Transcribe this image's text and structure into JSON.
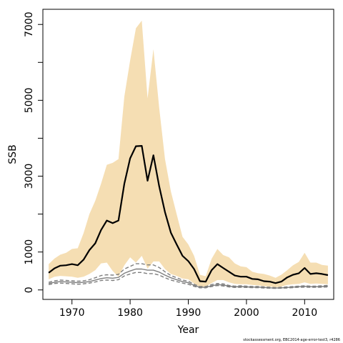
{
  "chart_data": {
    "type": "line",
    "xlabel": "Year",
    "ylabel": "SSB",
    "xlim": [
      1965,
      2015
    ],
    "ylim": [
      -250,
      7400
    ],
    "x_ticks": [
      1970,
      1980,
      1990,
      2000,
      2010
    ],
    "y_ticks_labeled": [
      0,
      1000,
      3000,
      5000,
      7000
    ],
    "y_ticks_all": [
      0,
      1000,
      2000,
      3000,
      4000,
      5000,
      6000,
      7000
    ],
    "grid": false,
    "credit": "stockassessment.org, EBC2014-age-error-test3, r4286",
    "colors": {
      "band": "#f5deb3",
      "ssb": "#000000",
      "secondary": "#7f7f7f"
    },
    "series": [
      {
        "role": "ssb-estimate",
        "x": [
          1966,
          1967,
          1968,
          1969,
          1970,
          1971,
          1972,
          1973,
          1974,
          1975,
          1976,
          1977,
          1978,
          1979,
          1980,
          1981,
          1982,
          1983,
          1984,
          1985,
          1986,
          1987,
          1988,
          1989,
          1990,
          1991,
          1992,
          1993,
          1994,
          1995,
          1996,
          1997,
          1998,
          1999,
          2000,
          2001,
          2002,
          2003,
          2004,
          2005,
          2006,
          2007,
          2008,
          2009,
          2010,
          2011,
          2012,
          2013,
          2014
        ],
        "values": [
          450,
          570,
          640,
          650,
          680,
          650,
          800,
          1050,
          1230,
          1580,
          1830,
          1760,
          1830,
          2800,
          3470,
          3790,
          3800,
          2880,
          3550,
          2730,
          2050,
          1510,
          1200,
          900,
          760,
          550,
          230,
          220,
          520,
          680,
          580,
          480,
          380,
          350,
          350,
          290,
          280,
          230,
          220,
          180,
          220,
          330,
          400,
          440,
          580,
          420,
          440,
          420,
          390
        ],
        "color": "#000000",
        "width": 2.2,
        "dash": null
      },
      {
        "role": "ci-upper-secondary",
        "x": [
          1966,
          1967,
          1968,
          1969,
          1970,
          1971,
          1972,
          1973,
          1974,
          1975,
          1976,
          1977,
          1978,
          1979,
          1980,
          1981,
          1982,
          1983,
          1984,
          1985,
          1986,
          1987,
          1988,
          1989,
          1990,
          1991,
          1992,
          1993,
          1994,
          1995,
          1996,
          1997,
          1998,
          1999,
          2000,
          2001,
          2002,
          2003,
          2004,
          2005,
          2006,
          2007,
          2008,
          2009,
          2010,
          2011,
          2012,
          2013,
          2014
        ],
        "values": [
          200,
          240,
          260,
          250,
          240,
          230,
          240,
          270,
          320,
          380,
          400,
          390,
          410,
          550,
          620,
          690,
          690,
          660,
          660,
          590,
          480,
          380,
          320,
          260,
          230,
          150,
          90,
          90,
          140,
          170,
          160,
          120,
          100,
          110,
          100,
          90,
          90,
          80,
          70,
          60,
          70,
          80,
          90,
          100,
          110,
          100,
          100,
          110,
          120
        ],
        "color": "#7f7f7f",
        "width": 1.4,
        "dash": "5,3"
      },
      {
        "role": "secondary-estimate",
        "x": [
          1966,
          1967,
          1968,
          1969,
          1970,
          1971,
          1972,
          1973,
          1974,
          1975,
          1976,
          1977,
          1978,
          1979,
          1980,
          1981,
          1982,
          1983,
          1984,
          1985,
          1986,
          1987,
          1988,
          1989,
          1990,
          1991,
          1992,
          1993,
          1994,
          1995,
          1996,
          1997,
          1998,
          1999,
          2000,
          2001,
          2002,
          2003,
          2004,
          2005,
          2006,
          2007,
          2008,
          2009,
          2010,
          2011,
          2012,
          2013,
          2014
        ],
        "values": [
          170,
          200,
          220,
          210,
          200,
          190,
          200,
          220,
          260,
          300,
          320,
          310,
          330,
          440,
          500,
          550,
          550,
          520,
          520,
          470,
          390,
          320,
          270,
          220,
          190,
          120,
          70,
          70,
          110,
          140,
          130,
          100,
          80,
          90,
          80,
          75,
          75,
          65,
          55,
          50,
          55,
          65,
          75,
          85,
          95,
          85,
          85,
          90,
          100
        ],
        "color": "#7f7f7f",
        "width": 1.4,
        "dash": null
      },
      {
        "role": "ci-lower-secondary",
        "x": [
          1966,
          1967,
          1968,
          1969,
          1970,
          1971,
          1972,
          1973,
          1974,
          1975,
          1976,
          1977,
          1978,
          1979,
          1980,
          1981,
          1982,
          1983,
          1984,
          1985,
          1986,
          1987,
          1988,
          1989,
          1990,
          1991,
          1992,
          1993,
          1994,
          1995,
          1996,
          1997,
          1998,
          1999,
          2000,
          2001,
          2002,
          2003,
          2004,
          2005,
          2006,
          2007,
          2008,
          2009,
          2010,
          2011,
          2012,
          2013,
          2014
        ],
        "values": [
          140,
          170,
          180,
          170,
          160,
          150,
          160,
          180,
          210,
          250,
          260,
          250,
          270,
          370,
          420,
          460,
          460,
          430,
          430,
          390,
          320,
          260,
          220,
          180,
          150,
          95,
          55,
          55,
          90,
          115,
          105,
          80,
          65,
          70,
          65,
          60,
          60,
          52,
          45,
          40,
          45,
          52,
          60,
          68,
          75,
          68,
          68,
          72,
          80
        ],
        "color": "#7f7f7f",
        "width": 1.4,
        "dash": "5,3"
      }
    ],
    "band": {
      "role": "ssb-confidence-band",
      "x": [
        1966,
        1967,
        1968,
        1969,
        1970,
        1971,
        1972,
        1973,
        1974,
        1975,
        1976,
        1977,
        1978,
        1979,
        1980,
        1981,
        1982,
        1983,
        1984,
        1985,
        1986,
        1987,
        1988,
        1989,
        1990,
        1991,
        1992,
        1993,
        1994,
        1995,
        1996,
        1997,
        1998,
        1999,
        2000,
        2001,
        2002,
        2003,
        2004,
        2005,
        2006,
        2007,
        2008,
        2009,
        2010,
        2011,
        2012,
        2013,
        2014
      ],
      "upper": [
        680,
        830,
        930,
        980,
        1080,
        1100,
        1500,
        2000,
        2350,
        2800,
        3300,
        3350,
        3450,
        5100,
        6050,
        6900,
        7100,
        5050,
        6350,
        4800,
        3450,
        2600,
        2000,
        1400,
        1200,
        900,
        400,
        360,
        820,
        1080,
        920,
        860,
        700,
        620,
        600,
        480,
        440,
        420,
        380,
        320,
        400,
        520,
        650,
        740,
        980,
        720,
        720,
        660,
        640
      ],
      "lower": [
        280,
        350,
        370,
        360,
        350,
        320,
        350,
        420,
        520,
        700,
        720,
        500,
        350,
        650,
        860,
        720,
        900,
        560,
        750,
        750,
        550,
        420,
        370,
        300,
        280,
        170,
        80,
        90,
        180,
        260,
        260,
        200,
        160,
        150,
        150,
        130,
        120,
        100,
        90,
        70,
        90,
        130,
        150,
        160,
        200,
        160,
        170,
        160,
        150
      ]
    }
  }
}
